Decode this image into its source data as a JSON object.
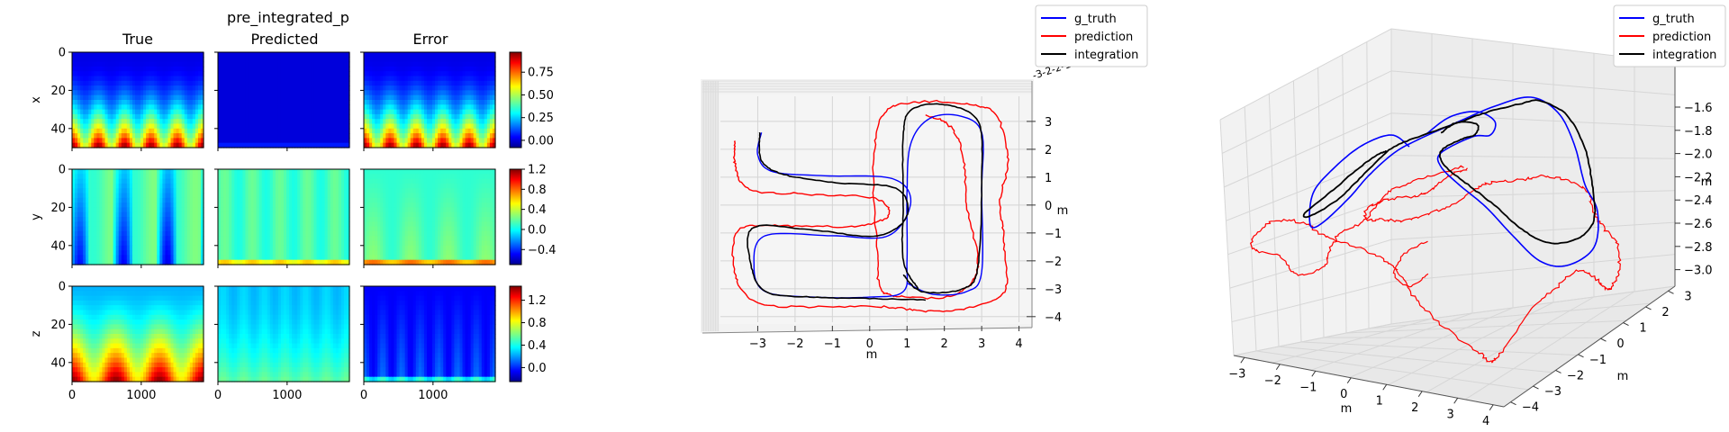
{
  "chart_data": [
    {
      "type": "heatmap",
      "title": "pre_integrated_p",
      "column_titles": [
        "True",
        "Predicted",
        "Error"
      ],
      "row_labels": [
        "x",
        "y",
        "z"
      ],
      "x_ticks": [
        "0",
        "1000"
      ],
      "y_ticks": [
        "0",
        "20",
        "40"
      ],
      "xlim": [
        0,
        1900
      ],
      "ylim": [
        50,
        0
      ],
      "colorbars": [
        {
          "row": "x",
          "range": [
            -0.08,
            0.97
          ],
          "ticks": [
            "0.75",
            "0.50",
            "0.25",
            "0.00"
          ]
        },
        {
          "row": "y",
          "range": [
            -0.7,
            1.2
          ],
          "ticks": [
            "1.2",
            "0.8",
            "0.4",
            "0.0",
            "−0.4"
          ]
        },
        {
          "row": "z",
          "range": [
            -0.25,
            1.45
          ],
          "ticks": [
            "1.2",
            "0.8",
            "0.4",
            "0.0"
          ]
        }
      ],
      "colormap": "jet"
    },
    {
      "type": "line",
      "view": "3d-top",
      "series": [
        {
          "name": "g_truth",
          "color": "#0000ff"
        },
        {
          "name": "prediction",
          "color": "#ff0000"
        },
        {
          "name": "integration",
          "color": "#000000"
        }
      ],
      "legend": "top-right",
      "x_ticks": [
        "−3",
        "−2",
        "−1",
        "0",
        "1",
        "2",
        "3",
        "4"
      ],
      "y_ticks": [
        "3",
        "2",
        "1",
        "0",
        "−1",
        "−2",
        "−3",
        "−4"
      ],
      "xlabel": "m",
      "ylabel": "m",
      "xlim": [
        -4,
        4.3
      ],
      "ylim": [
        -4.2,
        3.9
      ]
    },
    {
      "type": "line",
      "view": "3d-perspective",
      "series": [
        {
          "name": "g_truth",
          "color": "#0000ff"
        },
        {
          "name": "prediction",
          "color": "#ff0000"
        },
        {
          "name": "integration",
          "color": "#000000"
        }
      ],
      "legend": "top-right",
      "x_ticks": [
        "−3",
        "−2",
        "−1",
        "0",
        "1",
        "2",
        "3",
        "4"
      ],
      "y_ticks": [
        "−4",
        "−3",
        "−2",
        "−1",
        "0",
        "1",
        "2",
        "3"
      ],
      "z_ticks": [
        "−1.6",
        "−1.8",
        "−2.0",
        "−2.2",
        "−2.4",
        "−2.6",
        "−2.8",
        "−3.0"
      ],
      "xlabel": "m",
      "ylabel": "m",
      "zlabel": "m"
    }
  ]
}
